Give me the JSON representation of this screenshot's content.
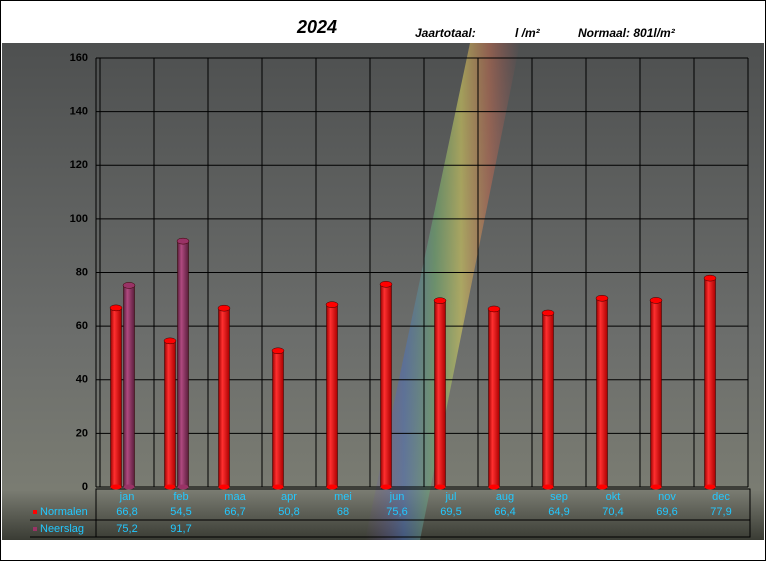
{
  "chart_data": {
    "type": "bar",
    "title": "2024",
    "annotations": [
      "Jaartotaal:",
      "l /m²",
      "Normaal: 801l/m²"
    ],
    "categories": [
      "jan",
      "feb",
      "maa",
      "apr",
      "mei",
      "jun",
      "jul",
      "aug",
      "sep",
      "okt",
      "nov",
      "dec"
    ],
    "series": [
      {
        "name": "Normalen",
        "color": "#ff0000",
        "values": [
          66.8,
          54.5,
          66.7,
          50.8,
          68,
          75.6,
          69.5,
          66.4,
          64.9,
          70.4,
          69.6,
          77.9
        ],
        "value_labels": [
          "66,8",
          "54,5",
          "66,7",
          "50,8",
          "68",
          "75,6",
          "69,5",
          "66,4",
          "64,9",
          "70,4",
          "69,6",
          "77,9"
        ]
      },
      {
        "name": "Neerslag",
        "color": "#993366",
        "values": [
          75.2,
          91.7,
          null,
          null,
          null,
          null,
          null,
          null,
          null,
          null,
          null,
          null
        ],
        "value_labels": [
          "75,2",
          "91,7",
          null,
          null,
          null,
          null,
          null,
          null,
          null,
          null,
          null,
          null
        ]
      }
    ],
    "ylim": [
      0,
      160
    ],
    "yticks": [
      0,
      20,
      40,
      60,
      80,
      100,
      120,
      140,
      160
    ],
    "grid": true
  }
}
